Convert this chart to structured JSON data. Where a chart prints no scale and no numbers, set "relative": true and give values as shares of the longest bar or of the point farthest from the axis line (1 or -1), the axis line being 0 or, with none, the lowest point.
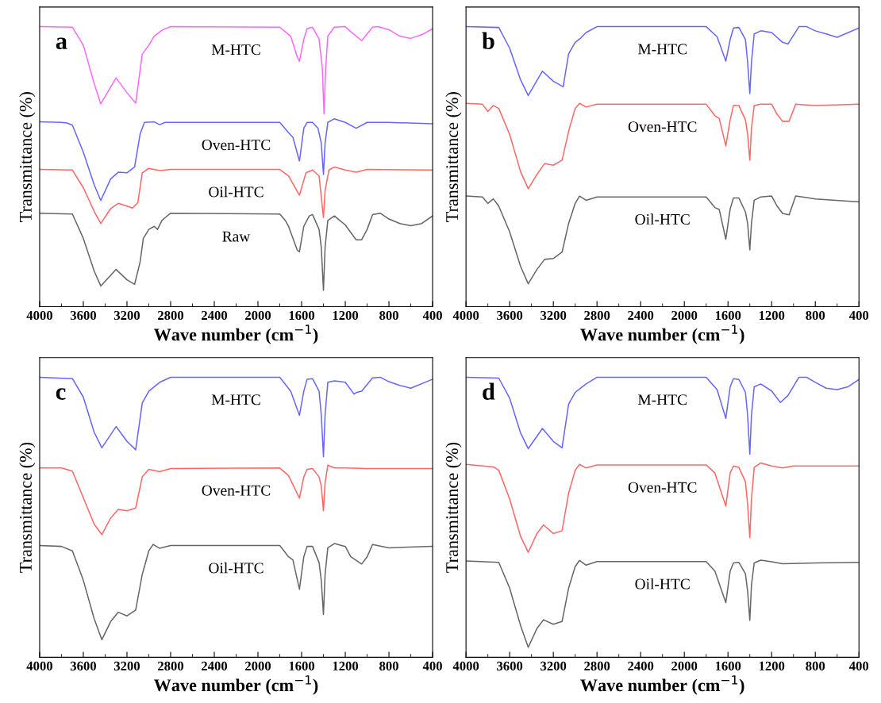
{
  "chart_data": [
    {
      "type": "line",
      "relative": true,
      "annotations": [
        "a"
      ],
      "xlabel": "Wave number (cm$^{−1}$)",
      "ylabel": "Transmittance (%)",
      "xlim": [
        4000,
        400
      ],
      "xticks": [
        4000,
        3600,
        3200,
        2800,
        2400,
        2000,
        1600,
        1200,
        800,
        400
      ],
      "grid": false,
      "legend": false,
      "marker": "none",
      "line_style": "solid",
      "x": [
        4000,
        3700,
        3600,
        3500,
        3440,
        3300,
        3200,
        3120,
        3060,
        3000,
        2950,
        2880,
        2800,
        1800,
        1700,
        1640,
        1620,
        1580,
        1550,
        1500,
        1440,
        1410,
        1395,
        1380,
        1360,
        1300,
        1200,
        1150,
        1050,
        950,
        900,
        800,
        700,
        600,
        500,
        400
      ],
      "series": [
        {
          "name": "M-HTC",
          "color": "#ff66ff",
          "values": [
            1.0,
            0.998,
            0.934,
            0.796,
            0.724,
            0.817,
            0.764,
            0.727,
            0.902,
            0.934,
            0.966,
            0.987,
            1.0,
            0.998,
            0.966,
            0.892,
            0.876,
            0.955,
            0.993,
            0.998,
            0.955,
            0.849,
            0.688,
            0.849,
            0.966,
            0.998,
            1.0,
            0.982,
            0.95,
            0.998,
            1.0,
            0.989,
            0.966,
            0.958,
            0.971,
            0.993
          ]
        },
        {
          "name": "Oven-HTC",
          "color": "#6666ff",
          "x": [
            4000,
            3800,
            3750,
            3700,
            3600,
            3500,
            3440,
            3350,
            3280,
            3200,
            3130,
            3080,
            3040,
            2950,
            2900,
            2850,
            1800,
            1720,
            1680,
            1620,
            1580,
            1550,
            1500,
            1450,
            1420,
            1400,
            1385,
            1360,
            1300,
            1200,
            1100,
            1000,
            800,
            400
          ],
          "values": [
            0.66,
            0.658,
            0.656,
            0.648,
            0.552,
            0.435,
            0.379,
            0.456,
            0.48,
            0.478,
            0.499,
            0.616,
            0.658,
            0.66,
            0.65,
            0.658,
            0.658,
            0.621,
            0.605,
            0.52,
            0.637,
            0.658,
            0.658,
            0.637,
            0.584,
            0.472,
            0.584,
            0.658,
            0.671,
            0.658,
            0.637,
            0.658,
            0.658,
            0.653
          ]
        },
        {
          "name": "Oil-HTC",
          "color": "#ff6666",
          "x": [
            4000,
            3700,
            3600,
            3500,
            3440,
            3350,
            3280,
            3200,
            3150,
            3100,
            3060,
            3000,
            2900,
            2800,
            1800,
            1720,
            1620,
            1560,
            1500,
            1440,
            1420,
            1400,
            1385,
            1350,
            1300,
            1200,
            1100,
            1000,
            400
          ],
          "values": [
            0.49,
            0.488,
            0.425,
            0.34,
            0.297,
            0.35,
            0.369,
            0.359,
            0.352,
            0.372,
            0.478,
            0.494,
            0.486,
            0.49,
            0.49,
            0.467,
            0.398,
            0.478,
            0.488,
            0.467,
            0.393,
            0.318,
            0.414,
            0.488,
            0.499,
            0.488,
            0.48,
            0.49,
            0.488
          ]
        },
        {
          "name": "Raw",
          "color": "#666666",
          "x": [
            4000,
            3700,
            3600,
            3500,
            3440,
            3300,
            3200,
            3130,
            3080,
            3050,
            3000,
            2950,
            2920,
            2880,
            2850,
            2800,
            1800,
            1750,
            1720,
            1640,
            1620,
            1580,
            1530,
            1500,
            1440,
            1420,
            1400,
            1385,
            1360,
            1300,
            1250,
            1200,
            1150,
            1100,
            1050,
            1000,
            950,
            880,
            800,
            700,
            600,
            500,
            400
          ],
          "values": [
            0.334,
            0.331,
            0.244,
            0.127,
            0.074,
            0.133,
            0.096,
            0.08,
            0.159,
            0.244,
            0.276,
            0.287,
            0.276,
            0.308,
            0.318,
            0.334,
            0.331,
            0.308,
            0.287,
            0.202,
            0.196,
            0.287,
            0.324,
            0.329,
            0.276,
            0.212,
            0.058,
            0.212,
            0.308,
            0.324,
            0.308,
            0.292,
            0.265,
            0.239,
            0.239,
            0.276,
            0.329,
            0.334,
            0.313,
            0.297,
            0.289,
            0.297,
            0.324
          ]
        }
      ]
    },
    {
      "type": "line",
      "relative": true,
      "annotations": [
        "b"
      ],
      "xlabel": "Wave number (cm$^{−1}$)",
      "ylabel": "Transmittance (%)",
      "xlim": [
        4000,
        400
      ],
      "xticks": [
        4000,
        3600,
        3200,
        2800,
        2400,
        2000,
        1600,
        1200,
        800,
        400
      ],
      "grid": false,
      "legend": false,
      "marker": "none",
      "line_style": "solid",
      "series": [
        {
          "name": "M-HTC",
          "color": "#6666ff",
          "x": [
            4000,
            3700,
            3600,
            3500,
            3430,
            3300,
            3200,
            3110,
            3060,
            3000,
            2950,
            2900,
            2800,
            1800,
            1700,
            1620,
            1580,
            1550,
            1500,
            1440,
            1420,
            1400,
            1385,
            1360,
            1300,
            1200,
            1100,
            1050,
            950,
            880,
            800,
            700,
            600,
            400
          ],
          "values": [
            1.0,
            0.997,
            0.923,
            0.81,
            0.754,
            0.841,
            0.805,
            0.785,
            0.903,
            0.944,
            0.959,
            0.979,
            1.0,
            1.0,
            0.964,
            0.877,
            0.954,
            0.995,
            0.997,
            0.954,
            0.872,
            0.761,
            0.872,
            0.974,
            0.985,
            0.979,
            0.944,
            0.938,
            1.0,
            1.0,
            0.985,
            0.974,
            0.962,
            0.995
          ]
        },
        {
          "name": "Oven-HTC",
          "color": "#ff6666",
          "x": [
            4000,
            3850,
            3800,
            3750,
            3700,
            3600,
            3500,
            3430,
            3350,
            3280,
            3200,
            3120,
            3060,
            3000,
            2960,
            2900,
            2800,
            1800,
            1720,
            1680,
            1620,
            1580,
            1550,
            1500,
            1440,
            1420,
            1400,
            1385,
            1360,
            1300,
            1200,
            1150,
            1100,
            1040,
            980,
            800,
            400
          ],
          "values": [
            0.726,
            0.723,
            0.697,
            0.718,
            0.708,
            0.615,
            0.482,
            0.421,
            0.472,
            0.511,
            0.505,
            0.523,
            0.626,
            0.708,
            0.726,
            0.713,
            0.723,
            0.723,
            0.682,
            0.672,
            0.574,
            0.667,
            0.718,
            0.718,
            0.667,
            0.615,
            0.523,
            0.636,
            0.718,
            0.723,
            0.723,
            0.687,
            0.662,
            0.662,
            0.723,
            0.718,
            0.723
          ]
        },
        {
          "name": "Oil-HTC",
          "color": "#666666",
          "x": [
            4000,
            3850,
            3800,
            3750,
            3700,
            3600,
            3500,
            3430,
            3350,
            3280,
            3200,
            3120,
            3060,
            3000,
            2960,
            2900,
            2800,
            1800,
            1720,
            1680,
            1620,
            1580,
            1550,
            1500,
            1440,
            1420,
            1400,
            1385,
            1360,
            1300,
            1200,
            1150,
            1100,
            1040,
            980,
            800,
            400
          ],
          "values": [
            0.395,
            0.392,
            0.369,
            0.385,
            0.359,
            0.267,
            0.144,
            0.082,
            0.133,
            0.169,
            0.172,
            0.195,
            0.297,
            0.369,
            0.395,
            0.38,
            0.392,
            0.392,
            0.354,
            0.347,
            0.241,
            0.349,
            0.388,
            0.388,
            0.338,
            0.297,
            0.203,
            0.297,
            0.38,
            0.392,
            0.395,
            0.359,
            0.333,
            0.328,
            0.395,
            0.385,
            0.374
          ]
        }
      ]
    },
    {
      "type": "line",
      "relative": true,
      "annotations": [
        "c"
      ],
      "xlabel": "Wave number (cm$^{−1}$)",
      "ylabel": "Transmittance (%)",
      "xlim": [
        4000,
        400
      ],
      "xticks": [
        4000,
        3600,
        3200,
        2800,
        2400,
        2000,
        1600,
        1200,
        800,
        400
      ],
      "grid": false,
      "legend": false,
      "marker": "none",
      "line_style": "solid",
      "series": [
        {
          "name": "M-HTC",
          "color": "#6666ff",
          "x": [
            4000,
            3700,
            3600,
            3500,
            3430,
            3300,
            3200,
            3120,
            3060,
            3000,
            2950,
            2900,
            2800,
            1800,
            1700,
            1620,
            1580,
            1550,
            1500,
            1440,
            1420,
            1400,
            1385,
            1360,
            1300,
            1200,
            1120,
            1100,
            1050,
            950,
            880,
            800,
            700,
            600,
            400
          ],
          "values": [
            1.0,
            0.995,
            0.929,
            0.803,
            0.748,
            0.824,
            0.771,
            0.741,
            0.908,
            0.95,
            0.966,
            0.982,
            1.0,
            1.0,
            0.95,
            0.864,
            0.95,
            0.993,
            0.995,
            0.95,
            0.866,
            0.716,
            0.866,
            0.982,
            0.987,
            0.982,
            0.94,
            0.945,
            0.95,
            0.998,
            1.0,
            0.984,
            0.971,
            0.961,
            0.993
          ]
        },
        {
          "name": "Oven-HTC",
          "color": "#ff6666",
          "x": [
            4000,
            3800,
            3700,
            3600,
            3500,
            3430,
            3350,
            3280,
            3200,
            3120,
            3060,
            3000,
            2900,
            2800,
            1800,
            1720,
            1620,
            1580,
            1550,
            1500,
            1440,
            1420,
            1400,
            1385,
            1360,
            1300,
            1200,
            1000,
            400
          ],
          "values": [
            0.676,
            0.676,
            0.665,
            0.57,
            0.475,
            0.438,
            0.497,
            0.528,
            0.523,
            0.533,
            0.644,
            0.671,
            0.663,
            0.674,
            0.676,
            0.649,
            0.568,
            0.644,
            0.671,
            0.674,
            0.644,
            0.612,
            0.523,
            0.623,
            0.686,
            0.676,
            0.676,
            0.674,
            0.674
          ]
        },
        {
          "name": "Oil-HTC",
          "color": "#666666",
          "x": [
            4000,
            3800,
            3700,
            3600,
            3500,
            3430,
            3350,
            3280,
            3200,
            3120,
            3060,
            3000,
            2960,
            2900,
            2800,
            1800,
            1720,
            1680,
            1620,
            1580,
            1550,
            1500,
            1440,
            1420,
            1400,
            1385,
            1360,
            1300,
            1200,
            1150,
            1050,
            1000,
            950,
            800,
            400
          ],
          "values": [
            0.399,
            0.396,
            0.38,
            0.275,
            0.137,
            0.063,
            0.127,
            0.161,
            0.148,
            0.169,
            0.296,
            0.38,
            0.403,
            0.389,
            0.399,
            0.399,
            0.359,
            0.348,
            0.243,
            0.359,
            0.396,
            0.396,
            0.338,
            0.275,
            0.153,
            0.296,
            0.391,
            0.406,
            0.396,
            0.359,
            0.333,
            0.359,
            0.403,
            0.391,
            0.396
          ]
        }
      ]
    },
    {
      "type": "line",
      "relative": true,
      "annotations": [
        "d"
      ],
      "xlabel": "Wave number (cm$^{−1}$)",
      "ylabel": "Transmittance (%)",
      "xlim": [
        4000,
        400
      ],
      "xticks": [
        4000,
        3600,
        3200,
        2800,
        2400,
        2000,
        1600,
        1200,
        800,
        400
      ],
      "grid": false,
      "legend": false,
      "marker": "none",
      "line_style": "solid",
      "series": [
        {
          "name": "M-HTC",
          "color": "#6666ff",
          "x": [
            4000,
            3700,
            3600,
            3500,
            3430,
            3300,
            3200,
            3120,
            3060,
            3000,
            2950,
            2900,
            2800,
            1800,
            1700,
            1620,
            1580,
            1550,
            1500,
            1440,
            1420,
            1400,
            1385,
            1360,
            1300,
            1200,
            1120,
            1050,
            950,
            880,
            800,
            700,
            600,
            500,
            400
          ],
          "values": [
            1.0,
            0.997,
            0.925,
            0.801,
            0.745,
            0.817,
            0.771,
            0.748,
            0.904,
            0.946,
            0.961,
            0.976,
            1.0,
            1.0,
            0.956,
            0.853,
            0.966,
            0.995,
            0.992,
            0.946,
            0.863,
            0.725,
            0.863,
            0.966,
            0.976,
            0.951,
            0.91,
            0.935,
            1.0,
            1.0,
            0.982,
            0.961,
            0.956,
            0.966,
            0.992
          ]
        },
        {
          "name": "Oven-HTC",
          "color": "#ff6666",
          "x": [
            4000,
            3750,
            3700,
            3600,
            3500,
            3430,
            3350,
            3290,
            3200,
            3120,
            3060,
            3000,
            2960,
            2900,
            2800,
            1800,
            1720,
            1620,
            1580,
            1550,
            1500,
            1440,
            1420,
            1400,
            1385,
            1360,
            1300,
            1200,
            1100,
            1000,
            400
          ],
          "values": [
            0.689,
            0.68,
            0.668,
            0.565,
            0.432,
            0.375,
            0.442,
            0.473,
            0.442,
            0.452,
            0.586,
            0.668,
            0.689,
            0.676,
            0.687,
            0.687,
            0.658,
            0.54,
            0.658,
            0.683,
            0.678,
            0.627,
            0.545,
            0.427,
            0.565,
            0.678,
            0.694,
            0.683,
            0.676,
            0.683,
            0.683
          ]
        },
        {
          "name": "Oil-HTC",
          "color": "#666666",
          "x": [
            4000,
            3700,
            3600,
            3500,
            3430,
            3350,
            3290,
            3200,
            3120,
            3060,
            3000,
            2960,
            2900,
            2800,
            1800,
            1720,
            1620,
            1580,
            1550,
            1500,
            1440,
            1420,
            1400,
            1385,
            1360,
            1300,
            1200,
            1100,
            800,
            400
          ],
          "values": [
            0.344,
            0.339,
            0.247,
            0.113,
            0.036,
            0.103,
            0.134,
            0.118,
            0.128,
            0.247,
            0.324,
            0.346,
            0.329,
            0.342,
            0.342,
            0.308,
            0.195,
            0.308,
            0.337,
            0.339,
            0.298,
            0.236,
            0.132,
            0.257,
            0.337,
            0.347,
            0.341,
            0.334,
            0.337,
            0.339
          ]
        }
      ]
    }
  ]
}
